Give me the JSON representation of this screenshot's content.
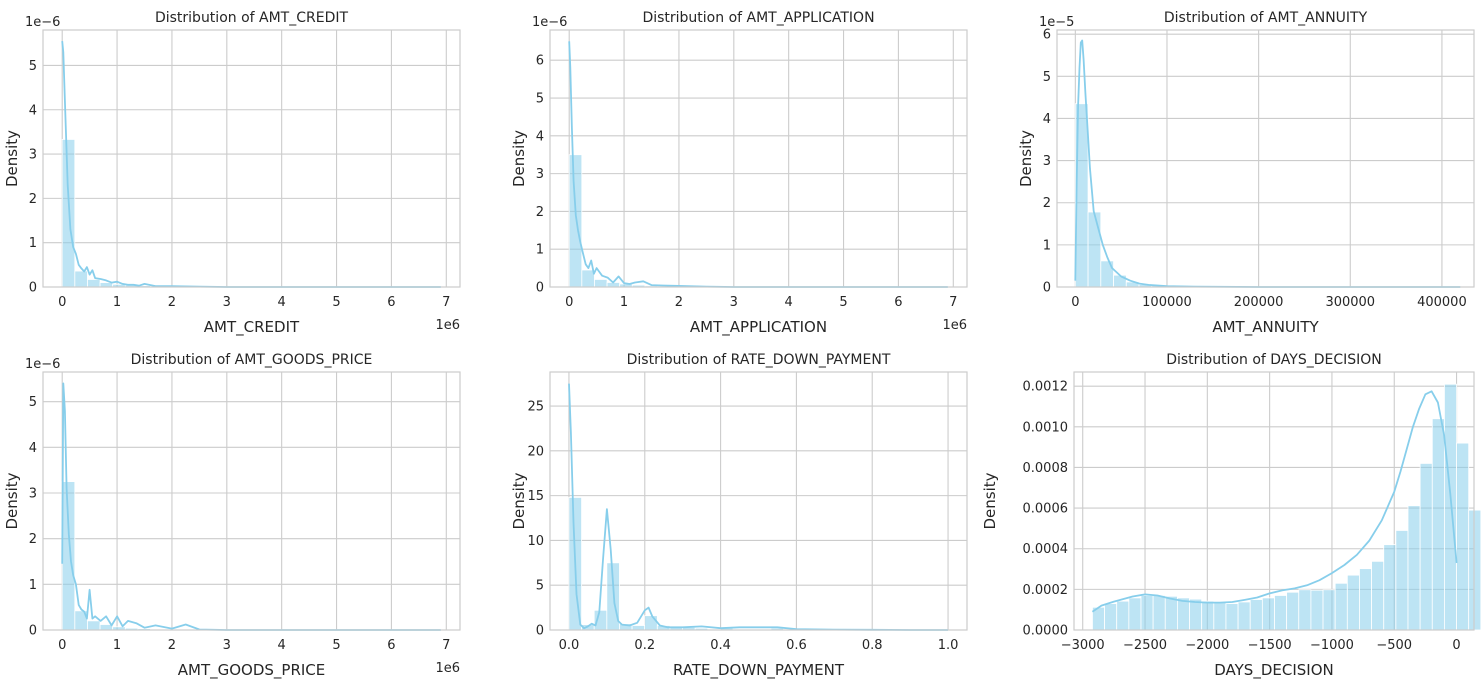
{
  "colors": {
    "accent": "#87ceeb",
    "grid": "#cccccc",
    "text": "#262626"
  },
  "chart_data": [
    {
      "type": "bar",
      "title": "Distribution of AMT_CREDIT",
      "xlabel": "AMT_CREDIT",
      "ylabel": "Density",
      "y_offset_text": "1e−6",
      "x_offset_text": "1e6",
      "xlim": [
        -0.35,
        7.25
      ],
      "ylim": [
        0,
        5.8
      ],
      "x_ticks": [
        0,
        1,
        2,
        3,
        4,
        5,
        6,
        7
      ],
      "x_tick_labels": [
        "0",
        "1",
        "2",
        "3",
        "4",
        "5",
        "6",
        "7"
      ],
      "y_ticks": [
        0,
        1,
        2,
        3,
        4,
        5
      ],
      "y_tick_labels": [
        "0",
        "1",
        "2",
        "3",
        "4",
        "5"
      ],
      "grid": true,
      "bars": {
        "start": 0,
        "width": 0.23,
        "values": [
          3.33,
          0.36,
          0.17,
          0.1,
          0.06,
          0.04,
          0.03,
          0.02,
          0.01,
          0.01,
          0.01,
          0.01,
          0.0,
          0.0,
          0.0,
          0.0,
          0.0,
          0.0,
          0.0,
          0.0,
          0.0,
          0.0,
          0.0,
          0.0,
          0.0,
          0.0,
          0.0,
          0.0,
          0.0,
          0.0
        ]
      },
      "kde": {
        "x": [
          0.0,
          0.02,
          0.05,
          0.1,
          0.15,
          0.2,
          0.25,
          0.3,
          0.35,
          0.4,
          0.45,
          0.5,
          0.55,
          0.6,
          0.7,
          0.8,
          0.9,
          1.0,
          1.1,
          1.2,
          1.3,
          1.4,
          1.5,
          1.7,
          2.0,
          2.5,
          3.0,
          4.0,
          5.0,
          6.0,
          6.9
        ],
        "y": [
          5.55,
          5.3,
          4.2,
          2.3,
          1.3,
          0.9,
          0.75,
          0.5,
          0.42,
          0.35,
          0.45,
          0.28,
          0.38,
          0.2,
          0.18,
          0.15,
          0.1,
          0.12,
          0.07,
          0.05,
          0.05,
          0.03,
          0.07,
          0.02,
          0.02,
          0.01,
          0.0,
          0.0,
          0.0,
          0.0,
          0.0
        ]
      }
    },
    {
      "type": "bar",
      "title": "Distribution of AMT_APPLICATION",
      "xlabel": "AMT_APPLICATION",
      "ylabel": "Density",
      "y_offset_text": "1e−6",
      "x_offset_text": "1e6",
      "xlim": [
        -0.35,
        7.25
      ],
      "ylim": [
        0,
        6.8
      ],
      "x_ticks": [
        0,
        1,
        2,
        3,
        4,
        5,
        6,
        7
      ],
      "x_tick_labels": [
        "0",
        "1",
        "2",
        "3",
        "4",
        "5",
        "6",
        "7"
      ],
      "y_ticks": [
        0,
        1,
        2,
        3,
        4,
        5,
        6
      ],
      "y_tick_labels": [
        "0",
        "1",
        "2",
        "3",
        "4",
        "5",
        "6"
      ],
      "grid": true,
      "bars": {
        "start": 0,
        "width": 0.23,
        "values": [
          3.5,
          0.45,
          0.2,
          0.12,
          0.08,
          0.05,
          0.03,
          0.02,
          0.01,
          0.01,
          0.01,
          0.0,
          0.0,
          0.0,
          0.0,
          0.0,
          0.0,
          0.0,
          0.0,
          0.0,
          0.0,
          0.0,
          0.0,
          0.0,
          0.0,
          0.0,
          0.0,
          0.0,
          0.0,
          0.0
        ]
      },
      "kde": {
        "x": [
          0.0,
          0.02,
          0.05,
          0.08,
          0.12,
          0.16,
          0.2,
          0.25,
          0.3,
          0.35,
          0.4,
          0.45,
          0.5,
          0.6,
          0.7,
          0.8,
          0.9,
          1.0,
          1.1,
          1.2,
          1.35,
          1.5,
          1.7,
          2.0,
          2.5,
          3.0,
          4.0,
          5.0,
          6.0,
          6.9
        ],
        "y": [
          6.5,
          5.8,
          4.2,
          2.8,
          1.9,
          1.5,
          1.2,
          0.9,
          0.6,
          0.5,
          0.7,
          0.35,
          0.5,
          0.3,
          0.25,
          0.12,
          0.28,
          0.1,
          0.08,
          0.12,
          0.15,
          0.05,
          0.04,
          0.03,
          0.01,
          0.0,
          0.0,
          0.0,
          0.0,
          0.0
        ]
      }
    },
    {
      "type": "bar",
      "title": "Distribution of AMT_ANNUITY",
      "xlabel": "AMT_ANNUITY",
      "ylabel": "Density",
      "y_offset_text": "1e−5",
      "x_offset_text": "",
      "xlim": [
        -20000,
        435000
      ],
      "ylim": [
        0,
        6.1
      ],
      "x_ticks": [
        0,
        100000,
        200000,
        300000,
        400000
      ],
      "x_tick_labels": [
        "0",
        "100000",
        "200000",
        "300000",
        "400000"
      ],
      "y_ticks": [
        0,
        1,
        2,
        3,
        4,
        5,
        6
      ],
      "y_tick_labels": [
        "0",
        "1",
        "2",
        "3",
        "4",
        "5",
        "6"
      ],
      "grid": true,
      "bars": {
        "start": 0,
        "width": 13900,
        "values": [
          4.35,
          1.78,
          0.62,
          0.28,
          0.12,
          0.06,
          0.04,
          0.02,
          0.01,
          0.01,
          0.0,
          0.0,
          0.0,
          0.0,
          0.0,
          0.0,
          0.0,
          0.0,
          0.0,
          0.0,
          0.0,
          0.0,
          0.0,
          0.0,
          0.0,
          0.0,
          0.0,
          0.0,
          0.0,
          0.0
        ]
      },
      "kde": {
        "x": [
          0,
          1500,
          3000,
          4500,
          6000,
          7500,
          9000,
          11000,
          13000,
          16000,
          20000,
          25000,
          30000,
          35000,
          40000,
          50000,
          60000,
          70000,
          80000,
          100000,
          130000,
          200000,
          300000,
          420000
        ],
        "y": [
          0.15,
          2.5,
          4.3,
          5.2,
          5.8,
          5.85,
          5.4,
          4.6,
          3.9,
          2.8,
          1.8,
          1.4,
          1.0,
          0.7,
          0.45,
          0.25,
          0.15,
          0.08,
          0.05,
          0.02,
          0.01,
          0.0,
          0.0,
          0.0
        ]
      }
    },
    {
      "type": "bar",
      "title": "Distribution of AMT_GOODS_PRICE",
      "xlabel": "AMT_GOODS_PRICE",
      "ylabel": "Density",
      "y_offset_text": "1e−6",
      "x_offset_text": "1e6",
      "xlim": [
        -0.35,
        7.25
      ],
      "ylim": [
        0,
        5.65
      ],
      "x_ticks": [
        0,
        1,
        2,
        3,
        4,
        5,
        6,
        7
      ],
      "x_tick_labels": [
        "0",
        "1",
        "2",
        "3",
        "4",
        "5",
        "6",
        "7"
      ],
      "y_ticks": [
        0,
        1,
        2,
        3,
        4,
        5
      ],
      "y_tick_labels": [
        "0",
        "1",
        "2",
        "3",
        "4",
        "5"
      ],
      "grid": true,
      "bars": {
        "start": 0,
        "width": 0.23,
        "values": [
          3.25,
          0.42,
          0.2,
          0.12,
          0.07,
          0.04,
          0.03,
          0.02,
          0.01,
          0.01,
          0.01,
          0.0,
          0.0,
          0.0,
          0.0,
          0.0,
          0.0,
          0.0,
          0.0,
          0.0,
          0.0,
          0.0,
          0.0,
          0.0,
          0.0,
          0.0,
          0.0,
          0.0,
          0.0,
          0.0
        ]
      },
      "kde": {
        "x": [
          0.0,
          0.02,
          0.05,
          0.08,
          0.12,
          0.16,
          0.2,
          0.25,
          0.3,
          0.35,
          0.4,
          0.45,
          0.5,
          0.55,
          0.6,
          0.7,
          0.8,
          0.9,
          1.0,
          1.1,
          1.2,
          1.35,
          1.5,
          1.7,
          2.0,
          2.25,
          2.5,
          3.0,
          4.0,
          5.0,
          6.0,
          6.9
        ],
        "y": [
          1.45,
          5.4,
          4.8,
          3.1,
          2.1,
          1.5,
          1.2,
          1.0,
          0.55,
          0.45,
          0.4,
          0.25,
          0.88,
          0.25,
          0.3,
          0.2,
          0.3,
          0.1,
          0.3,
          0.08,
          0.2,
          0.15,
          0.05,
          0.1,
          0.03,
          0.12,
          0.01,
          0.0,
          0.0,
          0.0,
          0.0,
          0.0
        ]
      }
    },
    {
      "type": "bar",
      "title": "Distribution of RATE_DOWN_PAYMENT",
      "xlabel": "RATE_DOWN_PAYMENT",
      "ylabel": "Density",
      "y_offset_text": "",
      "x_offset_text": "",
      "xlim": [
        -0.05,
        1.05
      ],
      "ylim": [
        0,
        28.8
      ],
      "x_ticks": [
        0.0,
        0.2,
        0.4,
        0.6,
        0.8,
        1.0
      ],
      "x_tick_labels": [
        "0.0",
        "0.2",
        "0.4",
        "0.6",
        "0.8",
        "1.0"
      ],
      "y_ticks": [
        0,
        5,
        10,
        15,
        20,
        25
      ],
      "y_tick_labels": [
        "0",
        "5",
        "10",
        "15",
        "20",
        "25"
      ],
      "grid": true,
      "bars": {
        "start": 0,
        "width": 0.0333,
        "values": [
          14.8,
          0.6,
          2.2,
          7.5,
          0.7,
          0.5,
          1.6,
          0.5,
          0.3,
          0.3,
          0.2,
          0.1,
          0.2,
          0.1,
          0.1,
          0.1,
          0.2,
          0.1,
          0.1,
          0.05,
          0.05,
          0.05,
          0.05,
          0.05,
          0.0,
          0.0,
          0.0,
          0.0,
          0.0,
          0.05
        ]
      },
      "kde": {
        "x": [
          0.0,
          0.005,
          0.012,
          0.02,
          0.03,
          0.04,
          0.05,
          0.06,
          0.07,
          0.08,
          0.09,
          0.1,
          0.11,
          0.12,
          0.13,
          0.14,
          0.16,
          0.18,
          0.2,
          0.21,
          0.22,
          0.24,
          0.26,
          0.3,
          0.35,
          0.4,
          0.45,
          0.5,
          0.55,
          0.6,
          0.7,
          0.8,
          0.9,
          1.0
        ],
        "y": [
          27.5,
          22.0,
          12.0,
          4.0,
          0.6,
          0.2,
          0.4,
          0.7,
          0.5,
          2.0,
          8.0,
          13.5,
          9.0,
          3.0,
          1.0,
          0.6,
          0.5,
          0.8,
          2.2,
          2.5,
          1.5,
          0.5,
          0.3,
          0.3,
          0.4,
          0.2,
          0.3,
          0.3,
          0.3,
          0.1,
          0.05,
          0.02,
          0.0,
          0.0
        ]
      }
    },
    {
      "type": "bar",
      "title": "Distribution of DAYS_DECISION",
      "xlabel": "DAYS_DECISION",
      "ylabel": "Density",
      "y_offset_text": "",
      "x_offset_text": "",
      "xlim": [
        -3070,
        140
      ],
      "ylim": [
        0,
        0.00127
      ],
      "x_ticks": [
        -3000,
        -2500,
        -2000,
        -1500,
        -1000,
        -500,
        0
      ],
      "x_tick_labels": [
        "−3000",
        "−2500",
        "−2000",
        "−1500",
        "−1000",
        "−500",
        "0"
      ],
      "y_ticks": [
        0,
        0.0002,
        0.0004,
        0.0006,
        0.0008,
        0.001,
        0.0012
      ],
      "y_tick_labels": [
        "0.0000",
        "0.0002",
        "0.0004",
        "0.0006",
        "0.0008",
        "0.0010",
        "0.0012"
      ],
      "grid": true,
      "bars": {
        "start": -2922,
        "width": 97.4,
        "values": [
          0.000112,
          0.00013,
          0.000142,
          0.000158,
          0.00017,
          0.00017,
          0.000166,
          0.000158,
          0.000152,
          0.000142,
          0.000136,
          0.00013,
          0.000138,
          0.00015,
          0.000158,
          0.00017,
          0.000186,
          0.000198,
          0.000196,
          0.000198,
          0.00023,
          0.00027,
          0.000302,
          0.000338,
          0.00042,
          0.00049,
          0.000612,
          0.00082,
          0.00104,
          0.00121,
          0.00092,
          0.00059
        ]
      },
      "kde": {
        "x": [
          -2922,
          -2850,
          -2750,
          -2600,
          -2500,
          -2400,
          -2300,
          -2200,
          -2100,
          -2000,
          -1900,
          -1800,
          -1700,
          -1600,
          -1500,
          -1400,
          -1300,
          -1200,
          -1100,
          -1000,
          -900,
          -800,
          -700,
          -600,
          -500,
          -450,
          -400,
          -350,
          -300,
          -250,
          -200,
          -150,
          -100,
          -50,
          0
        ],
        "y": [
          9e-05,
          0.00012,
          0.00014,
          0.000165,
          0.000175,
          0.00017,
          0.000155,
          0.000143,
          0.000138,
          0.000135,
          0.000135,
          0.000138,
          0.000148,
          0.00016,
          0.00018,
          0.000195,
          0.000205,
          0.00022,
          0.000245,
          0.00028,
          0.00032,
          0.00037,
          0.00044,
          0.00054,
          0.00068,
          0.00078,
          0.00089,
          0.001,
          0.00109,
          0.00116,
          0.001175,
          0.00112,
          0.00096,
          0.00067,
          0.00033
        ]
      }
    }
  ]
}
